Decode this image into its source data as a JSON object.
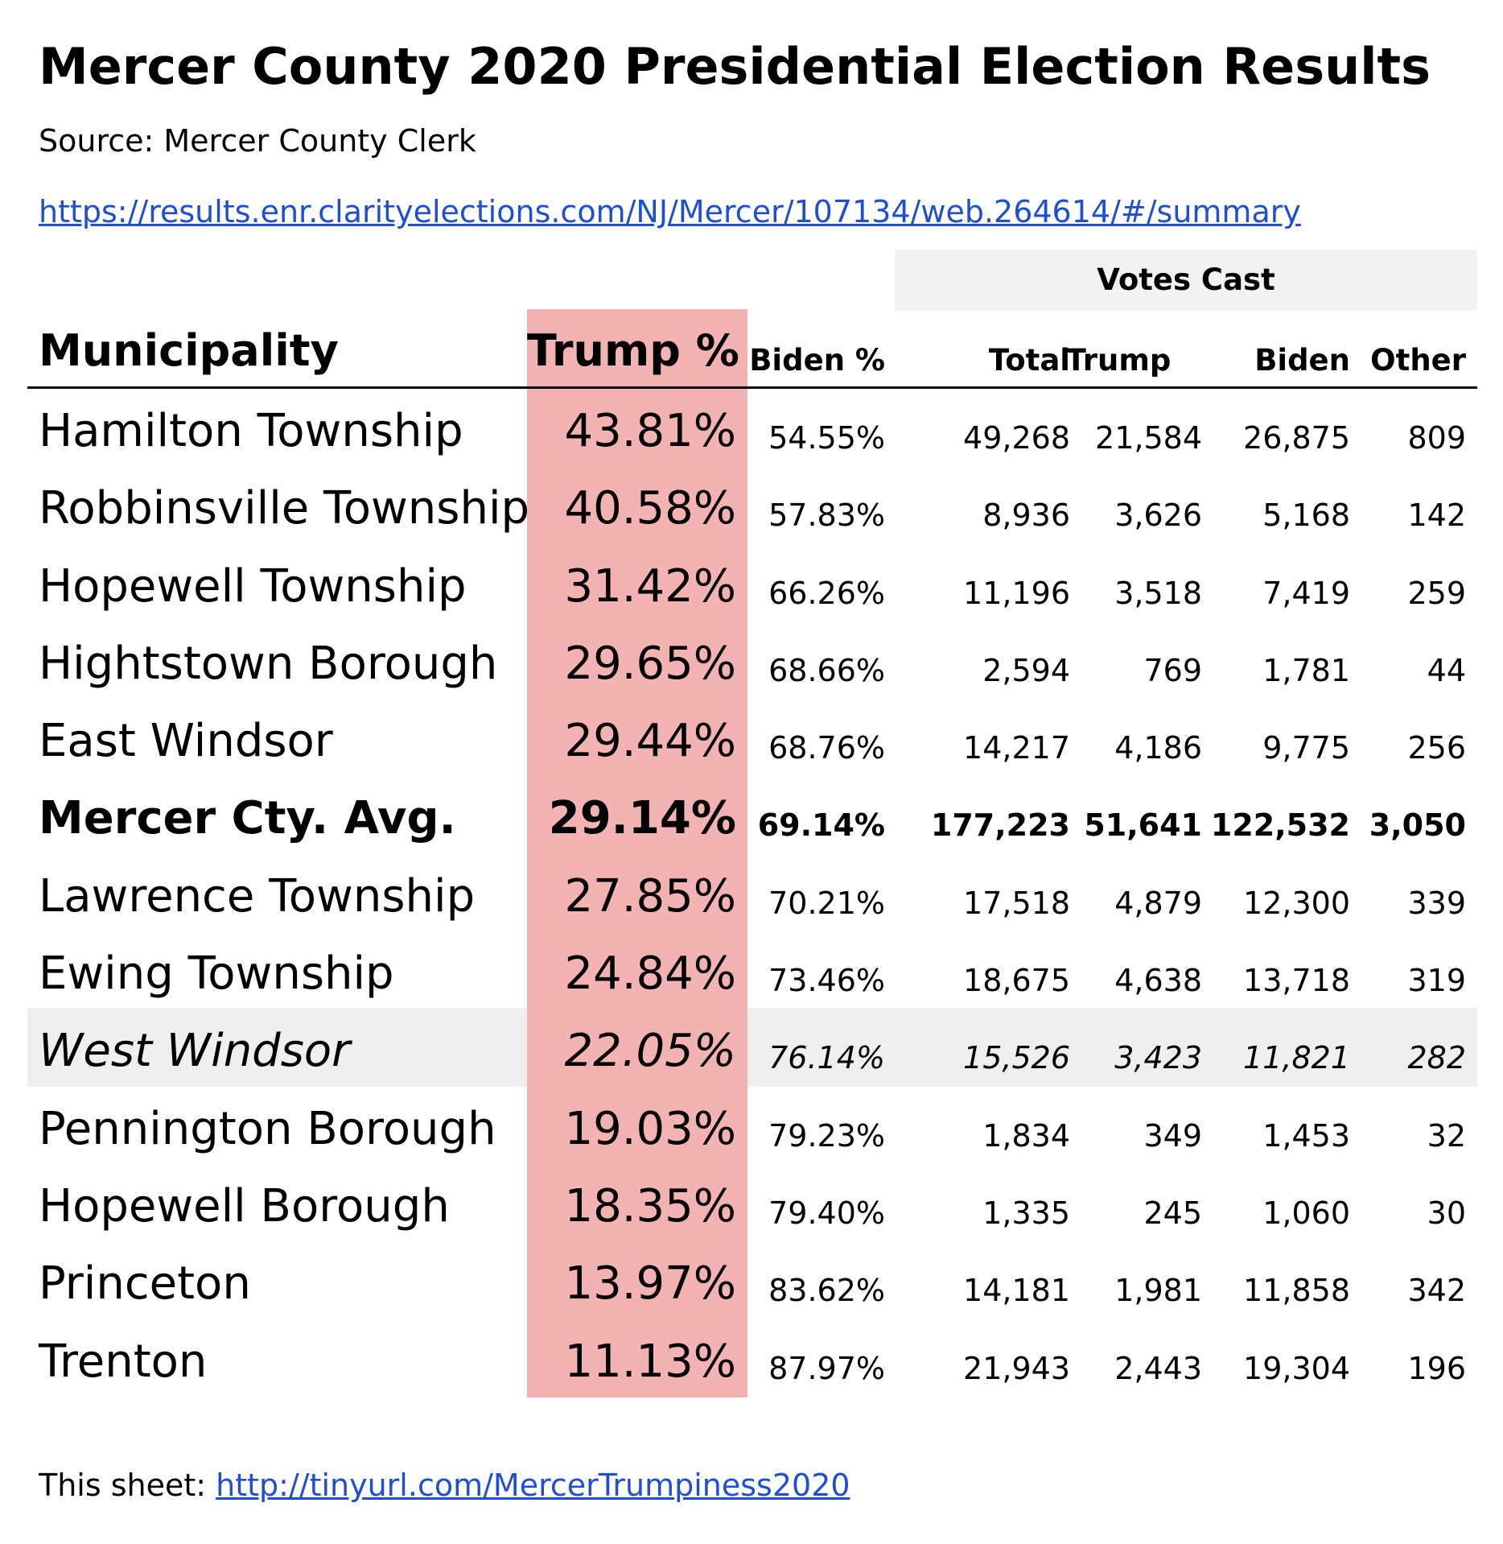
{
  "title": "Mercer County 2020 Presidential Election Results",
  "source": "Source: Mercer County Clerk",
  "source_url": "https://results.enr.clarityelections.com/NJ/Mercer/107134/web.264614/#/summary",
  "votes_cast_label": "Votes Cast",
  "columns": {
    "municipality": "Municipality",
    "trump_pct": "Trump %",
    "biden_pct": "Biden %",
    "total": "Total",
    "trump": "Trump",
    "biden": "Biden",
    "other": "Other"
  },
  "highlight_color": "#f3b3b3",
  "rows": [
    {
      "municipality": "Hamilton Township",
      "trump_pct": "43.81%",
      "biden_pct": "54.55%",
      "total": "49,268",
      "trump": "21,584",
      "biden": "26,875",
      "other": "809"
    },
    {
      "municipality": "Robbinsville Township",
      "trump_pct": "40.58%",
      "biden_pct": "57.83%",
      "total": "8,936",
      "trump": "3,626",
      "biden": "5,168",
      "other": "142"
    },
    {
      "municipality": "Hopewell Township",
      "trump_pct": "31.42%",
      "biden_pct": "66.26%",
      "total": "11,196",
      "trump": "3,518",
      "biden": "7,419",
      "other": "259"
    },
    {
      "municipality": "Hightstown Borough",
      "trump_pct": "29.65%",
      "biden_pct": "68.66%",
      "total": "2,594",
      "trump": "769",
      "biden": "1,781",
      "other": "44"
    },
    {
      "municipality": "East Windsor",
      "trump_pct": "29.44%",
      "biden_pct": "68.76%",
      "total": "14,217",
      "trump": "4,186",
      "biden": "9,775",
      "other": "256"
    },
    {
      "municipality": "Mercer Cty. Avg.",
      "trump_pct": "29.14%",
      "biden_pct": "69.14%",
      "total": "177,223",
      "trump": "51,641",
      "biden": "122,532",
      "other": "3,050"
    },
    {
      "municipality": "Lawrence Township",
      "trump_pct": "27.85%",
      "biden_pct": "70.21%",
      "total": "17,518",
      "trump": "4,879",
      "biden": "12,300",
      "other": "339"
    },
    {
      "municipality": "Ewing Township",
      "trump_pct": "24.84%",
      "biden_pct": "73.46%",
      "total": "18,675",
      "trump": "4,638",
      "biden": "13,718",
      "other": "319"
    },
    {
      "municipality": "West Windsor",
      "trump_pct": "22.05%",
      "biden_pct": "76.14%",
      "total": "15,526",
      "trump": "3,423",
      "biden": "11,821",
      "other": "282"
    },
    {
      "municipality": "Pennington Borough",
      "trump_pct": "19.03%",
      "biden_pct": "79.23%",
      "total": "1,834",
      "trump": "349",
      "biden": "1,453",
      "other": "32"
    },
    {
      "municipality": "Hopewell Borough",
      "trump_pct": "18.35%",
      "biden_pct": "79.40%",
      "total": "1,335",
      "trump": "245",
      "biden": "1,060",
      "other": "30"
    },
    {
      "municipality": "Princeton",
      "trump_pct": "13.97%",
      "biden_pct": "83.62%",
      "total": "14,181",
      "trump": "1,981",
      "biden": "11,858",
      "other": "342"
    },
    {
      "municipality": "Trenton",
      "trump_pct": "11.13%",
      "biden_pct": "87.97%",
      "total": "21,943",
      "trump": "2,443",
      "biden": "19,304",
      "other": "196"
    }
  ],
  "footer": {
    "prefix": "This sheet: ",
    "url": "http://tinyurl.com/MercerTrumpiness2020"
  }
}
